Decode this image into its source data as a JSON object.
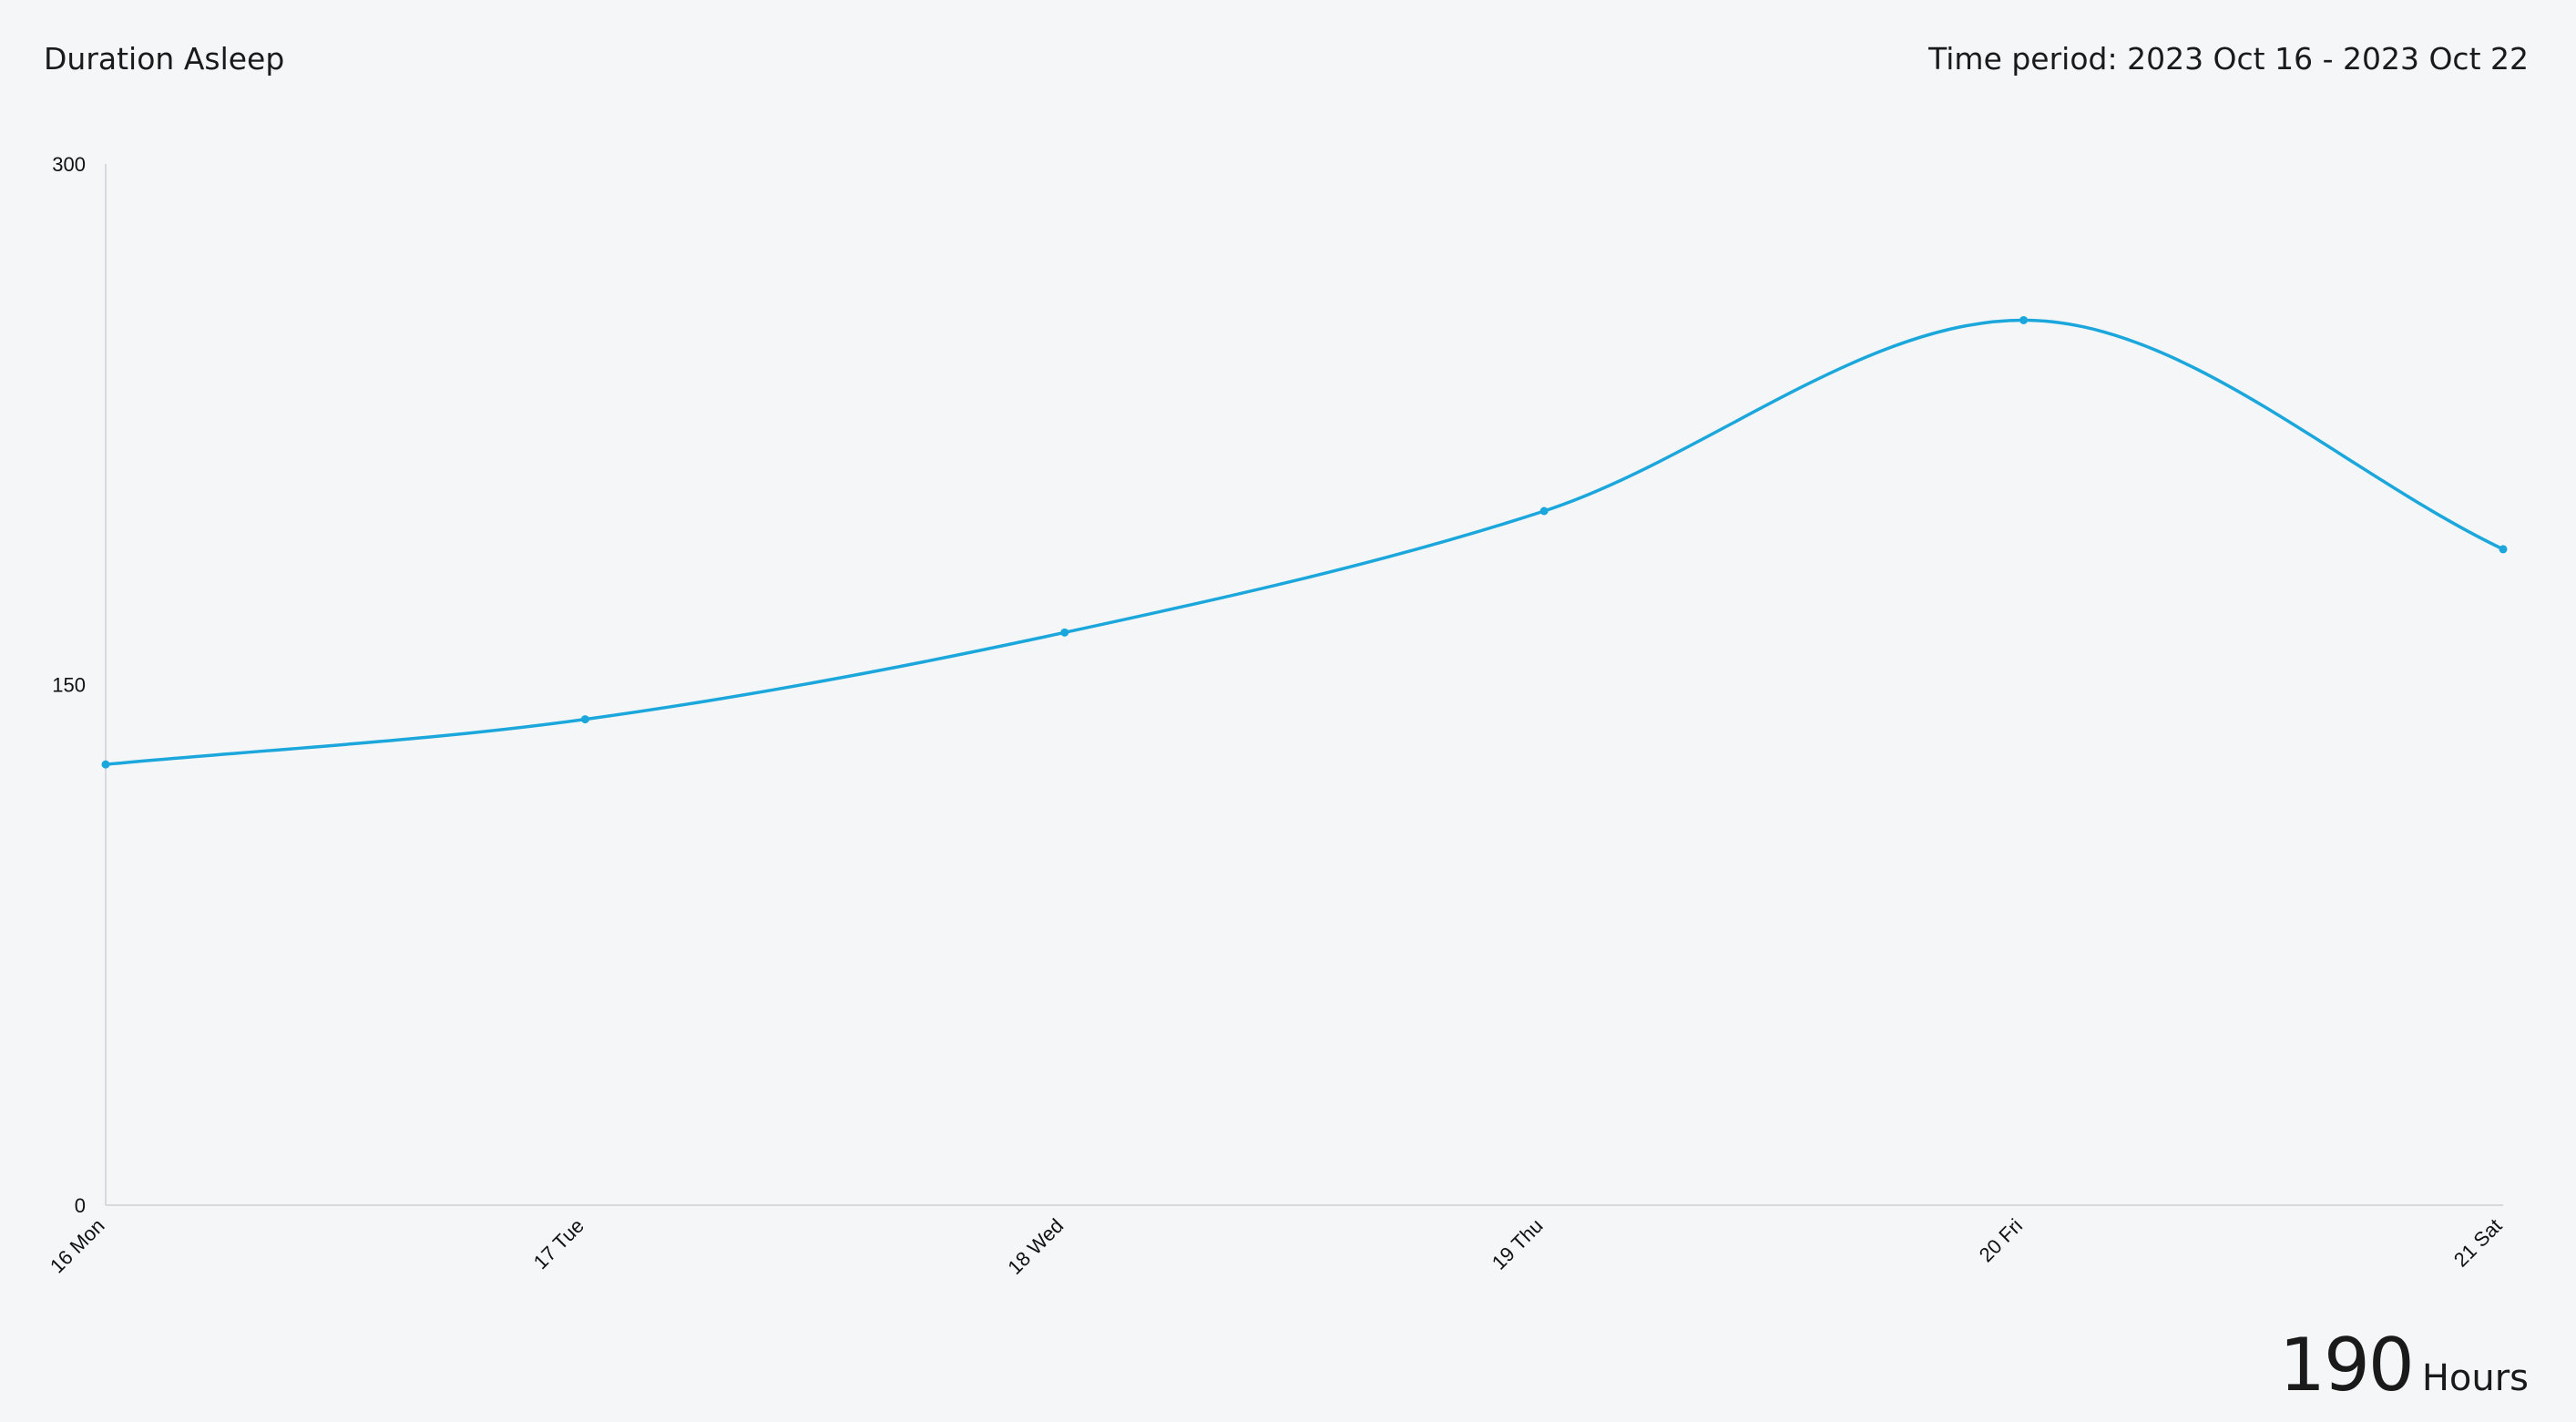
{
  "header": {
    "title": "Duration Asleep",
    "period": "Time period: 2023 Oct 16 - 2023 Oct 22"
  },
  "summary": {
    "value": "190",
    "unit": "Hours"
  },
  "colors": {
    "line": "#1ba7dc",
    "axis": "#d6d9dd",
    "background": "#f4f6f8"
  },
  "chart_data": {
    "type": "line",
    "categories": [
      "16 Mon",
      "17 Tue",
      "18 Wed",
      "19 Thu",
      "20 Fri",
      "21 Sat"
    ],
    "series": [
      {
        "values": [
          127,
          140,
          165,
          200,
          255,
          189
        ]
      }
    ],
    "yticks": [
      0,
      150,
      300
    ],
    "ylim": [
      0,
      300
    ],
    "grid": false,
    "curve": "smooth",
    "xlabel": "",
    "ylabel": ""
  }
}
